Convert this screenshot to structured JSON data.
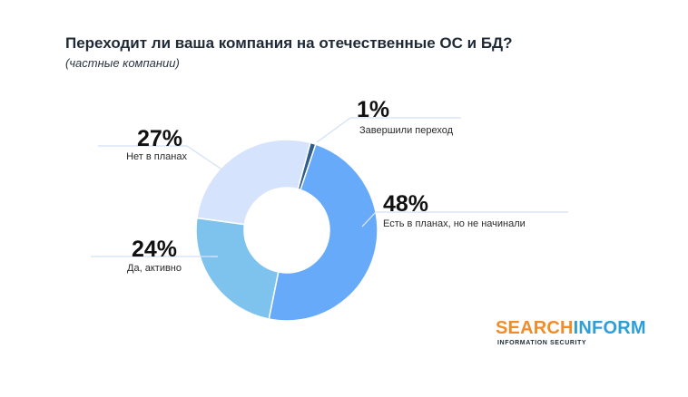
{
  "header": {
    "title": "Переходит ли ваша компания на отечественные ОС и БД?",
    "subtitle": "(частные компании)"
  },
  "chart_data": {
    "type": "pie",
    "variant": "donut",
    "categories": [
      "Завершили переход",
      "Есть в планах, но не начинали",
      "Да, активно",
      "Нет в планах"
    ],
    "values": [
      1,
      48,
      24,
      27
    ],
    "value_labels": [
      "1%",
      "48%",
      "24%",
      "27%"
    ],
    "colors": [
      "#2f5d8e",
      "#66aaf9",
      "#7ec3ee",
      "#d6e3fc"
    ]
  },
  "logo": {
    "name_part1": "SEARCH",
    "name_part2": "INFORM",
    "tagline": "INFORMATION SECURITY"
  }
}
